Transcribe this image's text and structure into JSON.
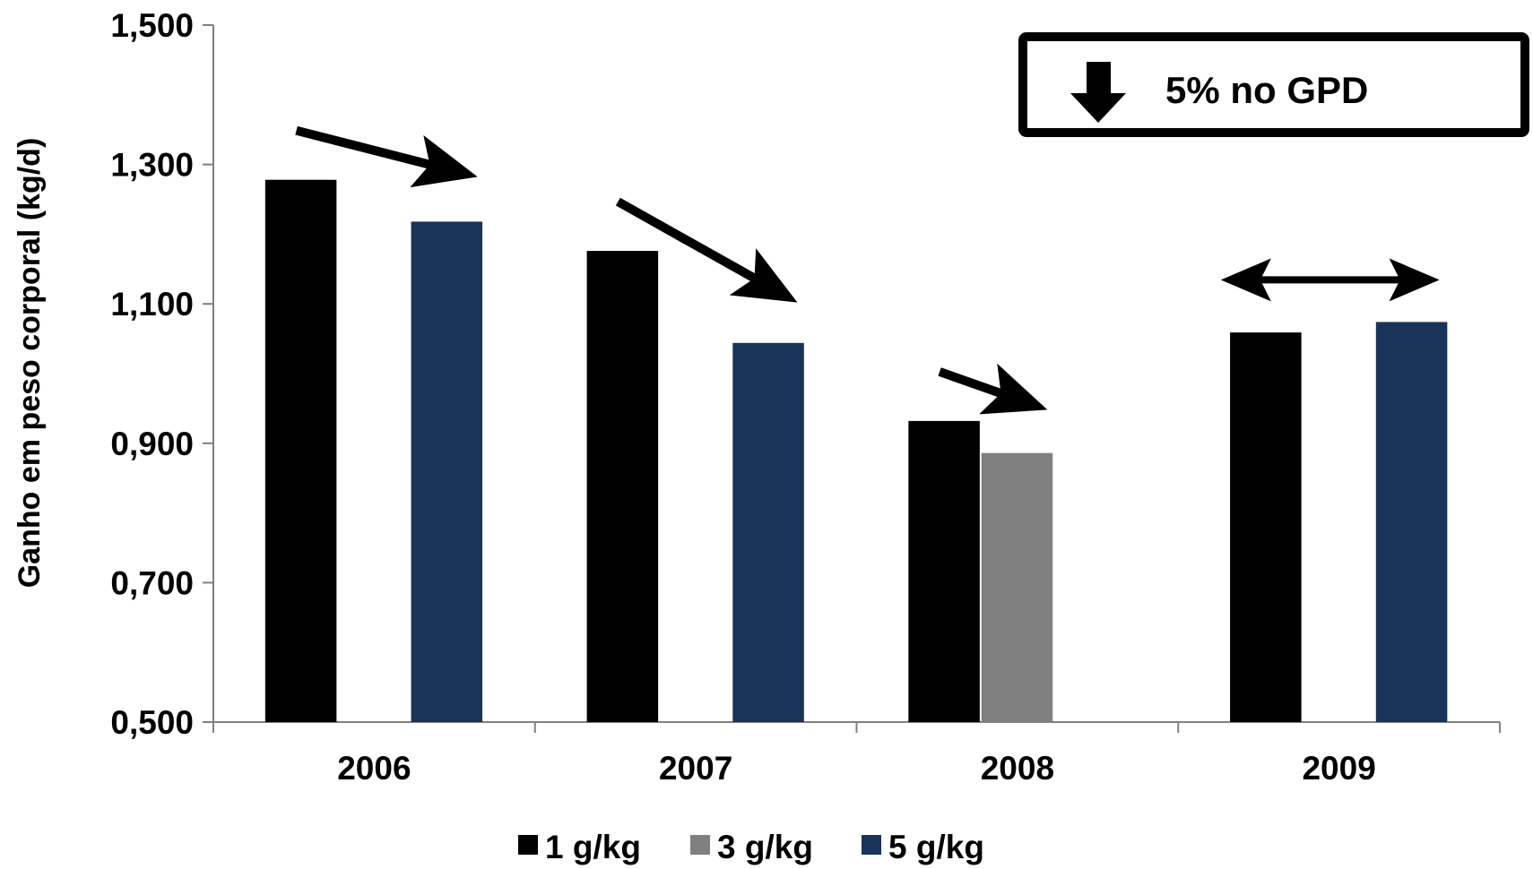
{
  "chart_data": {
    "type": "bar",
    "ylabel": "Ganho em peso corporal (kg/d)",
    "xlabel": "",
    "ylim": [
      0.5,
      1.5
    ],
    "yticks": [
      "0,500",
      "0,700",
      "0,900",
      "1,100",
      "1,300",
      "1,500"
    ],
    "ytick_values": [
      0.5,
      0.7,
      0.9,
      1.1,
      1.3,
      1.5
    ],
    "categories": [
      "2006",
      "2007",
      "2008",
      "2009"
    ],
    "series": [
      {
        "name": "1 g/kg",
        "color": "#000000",
        "values": [
          1.278,
          1.176,
          0.932,
          1.059
        ]
      },
      {
        "name": "3 g/kg",
        "color": "#808080",
        "values": [
          null,
          null,
          0.886,
          null
        ]
      },
      {
        "name": "5 g/kg",
        "color": "#1a3459",
        "values": [
          1.218,
          1.044,
          null,
          1.074
        ]
      }
    ],
    "annotations": {
      "box_text": "5% no GPD",
      "box_icon": "down-arrow-icon",
      "arrows": [
        {
          "category": "2006",
          "kind": "decrease"
        },
        {
          "category": "2007",
          "kind": "decrease"
        },
        {
          "category": "2008",
          "kind": "decrease"
        },
        {
          "category": "2009",
          "kind": "no-change"
        }
      ]
    },
    "legend": {
      "position": "bottom-center"
    },
    "grid": false
  }
}
